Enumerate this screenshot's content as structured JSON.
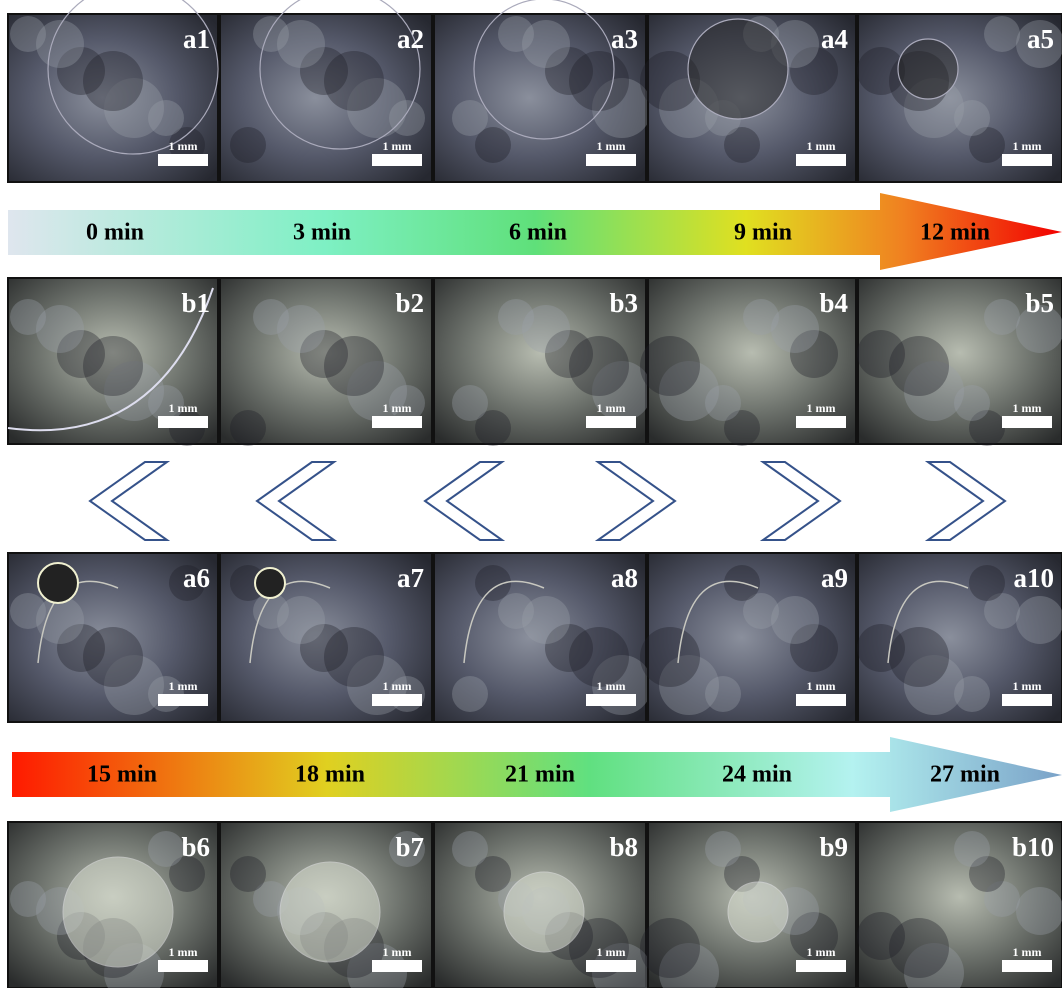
{
  "rows": [
    {
      "panels": [
        {
          "label": "a1",
          "scale": "1 mm"
        },
        {
          "label": "a2",
          "scale": "1 mm"
        },
        {
          "label": "a3",
          "scale": "1 mm"
        },
        {
          "label": "a4",
          "scale": "1 mm"
        },
        {
          "label": "a5",
          "scale": "1 mm"
        }
      ]
    },
    {
      "panels": [
        {
          "label": "b1",
          "scale": "1 mm"
        },
        {
          "label": "b2",
          "scale": "1 mm"
        },
        {
          "label": "b3",
          "scale": "1 mm"
        },
        {
          "label": "b4",
          "scale": "1 mm"
        },
        {
          "label": "b5",
          "scale": "1 mm"
        }
      ]
    },
    {
      "panels": [
        {
          "label": "a6",
          "scale": "1 mm"
        },
        {
          "label": "a7",
          "scale": "1 mm"
        },
        {
          "label": "a8",
          "scale": "1 mm"
        },
        {
          "label": "a9",
          "scale": "1 mm"
        },
        {
          "label": "a10",
          "scale": "1 mm"
        }
      ]
    },
    {
      "panels": [
        {
          "label": "b6",
          "scale": "1 mm"
        },
        {
          "label": "b7",
          "scale": "1 mm"
        },
        {
          "label": "b8",
          "scale": "1 mm"
        },
        {
          "label": "b9",
          "scale": "1 mm"
        },
        {
          "label": "b10",
          "scale": "1 mm"
        }
      ]
    }
  ],
  "timelines": [
    {
      "labels": [
        "0 min",
        "3 min",
        "6 min",
        "9 min",
        "12 min"
      ]
    },
    {
      "labels": [
        "15 min",
        "18 min",
        "21 min",
        "24 min",
        "27 min"
      ]
    }
  ]
}
